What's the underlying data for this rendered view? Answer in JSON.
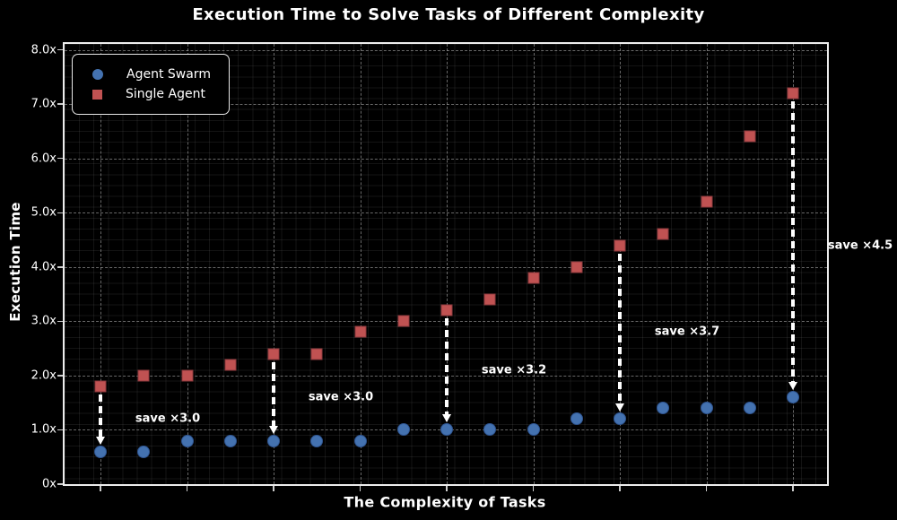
{
  "title": "Execution Time to Solve Tasks of Different Complexity",
  "axes": {
    "x_label": "The Complexity of Tasks",
    "y_label": "Execution Time",
    "y_tick_labels": [
      "0x",
      "1.0x",
      "2.0x",
      "3.0x",
      "4.0x",
      "5.0x",
      "6.0x",
      "7.0x",
      "8.0x"
    ]
  },
  "legend": {
    "items": [
      {
        "label": "Agent Swarm",
        "marker": "circle",
        "color": "#4472B0"
      },
      {
        "label": "Single Agent",
        "marker": "square",
        "color": "#C05252"
      }
    ]
  },
  "colors": {
    "background": "#000000",
    "agent_swarm": "#4472B0",
    "single_agent": "#C05252",
    "grid": "#bebebe",
    "text": "#ffffff",
    "arrow": "#ffffff"
  },
  "chart_data": {
    "type": "scatter",
    "title": "Execution Time to Solve Tasks of Different Complexity",
    "xlabel": "The Complexity of Tasks",
    "ylabel": "Execution Time",
    "x": [
      1,
      2,
      3,
      4,
      5,
      6,
      7,
      8,
      9,
      10,
      11,
      12,
      13,
      14,
      15,
      16,
      17
    ],
    "series": [
      {
        "name": "Agent Swarm",
        "marker": "circle",
        "color": "#4472B0",
        "values": [
          0.6,
          0.6,
          0.8,
          0.8,
          0.8,
          0.8,
          0.8,
          1.0,
          1.0,
          1.0,
          1.0,
          1.2,
          1.2,
          1.4,
          1.4,
          1.4,
          1.6
        ]
      },
      {
        "name": "Single Agent",
        "marker": "square",
        "color": "#C05252",
        "values": [
          1.8,
          2.0,
          2.0,
          2.2,
          2.4,
          2.4,
          2.8,
          3.0,
          3.2,
          3.4,
          3.8,
          4.0,
          4.4,
          4.6,
          5.2,
          6.4,
          7.2
        ]
      }
    ],
    "ylim": [
      0,
      8.1
    ],
    "yticks": [
      0,
      1,
      2,
      3,
      4,
      5,
      6,
      7,
      8
    ],
    "y_tick_labels": [
      "0x",
      "1.0x",
      "2.0x",
      "3.0x",
      "4.0x",
      "5.0x",
      "6.0x",
      "7.0x",
      "8.0x"
    ],
    "x_tick_labels": [],
    "grid": {
      "major": "dashed",
      "minor": "dotted",
      "vertical_major_at_x": [
        1,
        3,
        5,
        7,
        9,
        11,
        13,
        15,
        17
      ]
    },
    "legend_position": "upper-left",
    "annotations": [
      {
        "x_index": 1,
        "label": "save ×3.0"
      },
      {
        "x_index": 5,
        "label": "save ×3.0"
      },
      {
        "x_index": 9,
        "label": "save ×3.2"
      },
      {
        "x_index": 13,
        "label": "save ×3.7"
      },
      {
        "x_index": 17,
        "label": "save ×4.5"
      }
    ]
  }
}
